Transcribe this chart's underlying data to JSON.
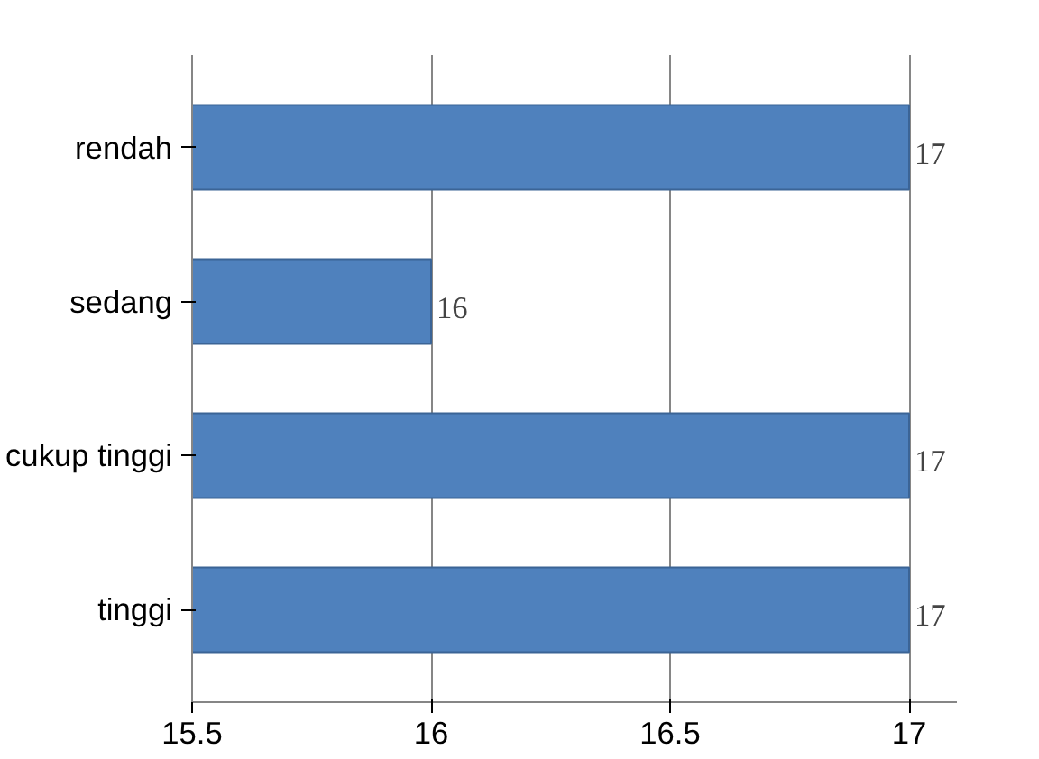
{
  "chart_data": {
    "type": "bar",
    "orientation": "horizontal",
    "categories": [
      "rendah",
      "sedang",
      "cukup tinggi",
      "tinggi"
    ],
    "values": [
      17,
      16,
      17,
      17
    ],
    "color": "#4f81bd",
    "xlim": [
      15.5,
      17.1
    ],
    "xticks": [
      15.5,
      16,
      16.5,
      17
    ],
    "grid": "x",
    "data_labels": true
  }
}
